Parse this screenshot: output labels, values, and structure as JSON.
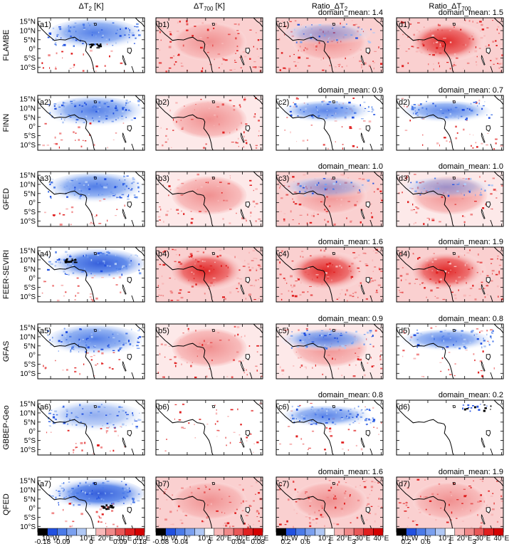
{
  "chart_data": {
    "type": "heatmap",
    "description_free": true,
    "column_titles": [
      {
        "base": "ΔT",
        "sub": "2",
        "suffix": " [K]"
      },
      {
        "base": "ΔT",
        "sub": "700",
        "suffix": " [K]"
      },
      {
        "base": "Ratio_ΔT",
        "sub": "2",
        "suffix": ""
      },
      {
        "base": "Ratio_ΔT",
        "sub": "700",
        "suffix": ""
      }
    ],
    "row_labels": [
      "FLAMBE",
      "FINN",
      "GFED",
      "FEER-SEVIRI",
      "GFAS",
      "GBBEP-Geo",
      "QFED"
    ],
    "panel_letters": [
      "a",
      "b",
      "c",
      "d"
    ],
    "domain_mean_label": "domain_mean:",
    "domain_means": [
      {
        "c": "1.4",
        "d": "1.5"
      },
      {
        "c": "0.9",
        "d": "0.7"
      },
      {
        "c": "1.0",
        "d": "1.0"
      },
      {
        "c": "1.6",
        "d": "1.9"
      },
      {
        "c": "0.9",
        "d": "0.8"
      },
      {
        "c": "0.8",
        "d": "0.2"
      },
      {
        "c": "1.6",
        "d": "1.9"
      }
    ],
    "lat_ticks": [
      "15°N",
      "10°N",
      "5°N",
      "0°",
      "5°S",
      "10°S"
    ],
    "lon_ticks": [
      "10°W",
      "0°",
      "10°E",
      "20°E",
      "30°E",
      "40°E"
    ],
    "lat_range": [
      -13,
      17
    ],
    "lon_range": [
      -17,
      41
    ],
    "colorbars": [
      {
        "colors": [
          "#000000",
          "#2150e0",
          "#4a7ae8",
          "#7aa0ef",
          "#b0c8f5",
          "#ffffff",
          "#f8b8b8",
          "#f08a8a",
          "#e85858",
          "#e02020",
          "#d40000"
        ],
        "labels": [
          "-0.18",
          "-0.09",
          "0",
          "0.09",
          "0.18"
        ]
      },
      {
        "colors": [
          "#000000",
          "#2150e0",
          "#4a7ae8",
          "#7aa0ef",
          "#b0c8f5",
          "#ffffff",
          "#f8b8b8",
          "#f08a8a",
          "#e85858",
          "#e02020",
          "#d40000"
        ],
        "labels": [
          "-0.08",
          "-0.04",
          "0",
          "0.04",
          "0.08"
        ]
      },
      {
        "colors": [
          "#000000",
          "#2150e0",
          "#4a7ae8",
          "#7aa0ef",
          "#b0c8f5",
          "#ffffff",
          "#f8b8b8",
          "#f08a8a",
          "#e85858",
          "#e02020",
          "#d40000"
        ],
        "labels": [
          "0.2",
          "0.6",
          "1",
          "3"
        ]
      },
      {
        "colors": [
          "#000000",
          "#2150e0",
          "#4a7ae8",
          "#7aa0ef",
          "#b0c8f5",
          "#ffffff",
          "#f8b8b8",
          "#f08a8a",
          "#e85858",
          "#e02020",
          "#d40000"
        ],
        "labels": [
          "0.2",
          "0.6",
          "1",
          "3"
        ]
      }
    ]
  }
}
